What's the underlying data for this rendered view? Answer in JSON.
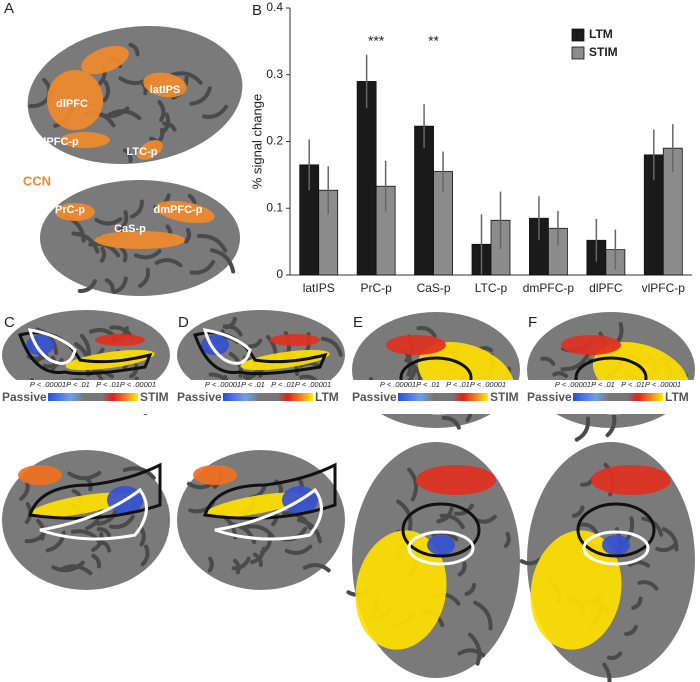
{
  "chart_data": {
    "type": "bar",
    "ylabel": "% signal change",
    "categories": [
      "latIPS",
      "PrC-p",
      "CaS-p",
      "LTC-p",
      "dmPFC-p",
      "dlPFC",
      "vlPFC-p"
    ],
    "series": [
      {
        "name": "LTM",
        "color": "#1a1a1a",
        "values": [
          0.165,
          0.29,
          0.223,
          0.046,
          0.085,
          0.052,
          0.18
        ],
        "errors": [
          0.038,
          0.04,
          0.033,
          0.045,
          0.033,
          0.032,
          0.038
        ]
      },
      {
        "name": "STIM",
        "color": "#8c8c8c",
        "values": [
          0.127,
          0.133,
          0.155,
          0.082,
          0.07,
          0.038,
          0.19
        ],
        "errors": [
          0.036,
          0.038,
          0.03,
          0.043,
          0.026,
          0.03,
          0.036
        ]
      }
    ],
    "annotations": [
      {
        "text": "***",
        "category": "PrC-p"
      },
      {
        "text": "**",
        "category": "CaS-p"
      }
    ],
    "ylim": [
      0,
      0.4
    ],
    "yticks": [
      0,
      0.1,
      0.2,
      0.3,
      0.4
    ],
    "grid": false,
    "legend": "upper right"
  },
  "figure": {
    "panel_labels": [
      "A",
      "B",
      "C",
      "D",
      "E",
      "F"
    ],
    "network_label": "CCN",
    "brain_labels": [
      "dlPFC",
      "latIPS",
      "vlPFC-p",
      "LTC-p",
      "PrC-p",
      "dmPFC-p",
      "CaS-p"
    ],
    "colorbars": [
      {
        "left": "Passive",
        "right": "STIM",
        "p_labels": [
          "P < .00001",
          "P < .01",
          "P < .01",
          "P < .00001"
        ]
      },
      {
        "left": "Passive",
        "right": "LTM",
        "p_labels": [
          "P < .00001",
          "P < .01",
          "P < .01",
          "P < .00001"
        ]
      },
      {
        "left": "Passive",
        "right": "STIM",
        "p_labels": [
          "P < .00001",
          "P < .01",
          "P < .01",
          "P < .00001"
        ]
      },
      {
        "left": "Passive",
        "right": "LTM",
        "p_labels": [
          "P < .00001",
          "P < .01",
          "P < .01",
          "P < .00001"
        ]
      }
    ]
  }
}
